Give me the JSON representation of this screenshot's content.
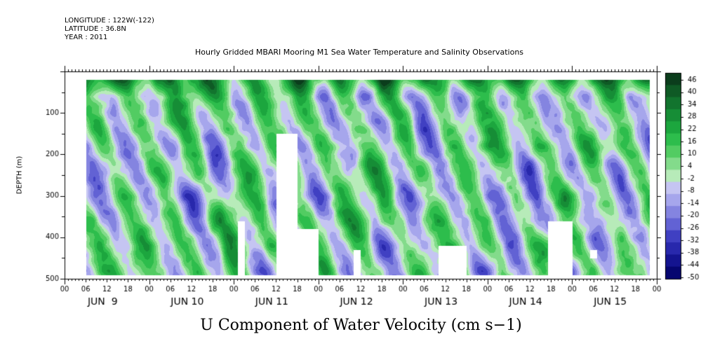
{
  "meta": {
    "longitude": "LONGITUDE : 122W(-122)",
    "latitude": "LATITUDE : 36.8N",
    "year": "YEAR : 2011"
  },
  "title": "Hourly Gridded MBARI Mooring M1 Sea Water Temperature and Salinity Observations",
  "bottom_title": "U Component of Water Velocity (cm s−1)",
  "chart_data": {
    "type": "heatmap",
    "title": "Hourly Gridded MBARI Mooring M1 Sea Water Temperature and Salinity Observations",
    "subtitle": "U Component of Water Velocity (cm s−1)",
    "xlabel": "",
    "ylabel": "DEPTH (m)",
    "y_reversed": true,
    "ylim": [
      500,
      0
    ],
    "y_ticks": [
      100,
      200,
      300,
      400,
      500
    ],
    "x_start": "2011-06-09 00:00",
    "x_end": "2011-06-16 00:00",
    "x_hour_ticks": [
      "00",
      "06",
      "12",
      "18",
      "00",
      "06",
      "12",
      "18",
      "00",
      "06",
      "12",
      "18",
      "00",
      "06",
      "12",
      "18",
      "00",
      "06",
      "12",
      "18",
      "00",
      "06",
      "12",
      "18",
      "00",
      "06",
      "12",
      "18",
      "00"
    ],
    "x_day_labels": [
      "JUN  9",
      "JUN 10",
      "JUN 11",
      "JUN 12",
      "JUN 13",
      "JUN 14",
      "JUN 15"
    ],
    "data_start": "2011-06-09 06:00",
    "colorbar": {
      "labels": [
        "46",
        "40",
        "34",
        "28",
        "22",
        "16",
        "10",
        "4",
        "-2",
        "-8",
        "-14",
        "-20",
        "-26",
        "-32",
        "-38",
        "-44",
        "-50"
      ],
      "colors": [
        "#0b3d1c",
        "#0f5a25",
        "#12742e",
        "#168d36",
        "#1ca63e",
        "#2dbd4c",
        "#52cc62",
        "#83db8b",
        "#b7ebb9",
        "#c5c5f2",
        "#a6a6ec",
        "#8484e0",
        "#6262d4",
        "#4040c2",
        "#2828ac",
        "#141490",
        "#060670"
      ]
    },
    "annotation_field": "Alternating east-west current bands in depth-time; strong eastward flow near surface; values roughly -30 to +40 cm/s"
  }
}
